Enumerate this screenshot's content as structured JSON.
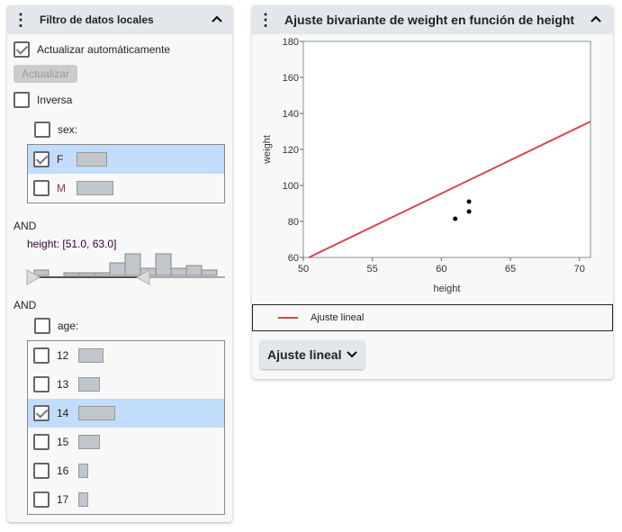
{
  "filter": {
    "title": "Filtro de datos locales",
    "auto_update_label": "Actualizar automáticamente",
    "auto_update": true,
    "update_button": "Actualizar",
    "inverse_label": "Inversa",
    "inverse": false,
    "sex": {
      "label": "sex:",
      "items": [
        {
          "label": "F",
          "checked": true
        },
        {
          "label": "M",
          "checked": false
        }
      ]
    },
    "and1": "AND",
    "height_label": "height: [51.0, 63.0]",
    "and2": "AND",
    "age": {
      "label": "age:",
      "items": [
        {
          "label": "12",
          "checked": false
        },
        {
          "label": "13",
          "checked": false
        },
        {
          "label": "14",
          "checked": true
        },
        {
          "label": "15",
          "checked": false
        },
        {
          "label": "16",
          "checked": false
        },
        {
          "label": "17",
          "checked": false
        }
      ]
    }
  },
  "report": {
    "title": "Ajuste bivariante de weight en función de height",
    "legend_label": "Ajuste lineal",
    "fit_button": "Ajuste lineal"
  },
  "chart_data": {
    "type": "scatter",
    "xlabel": "height",
    "ylabel": "weight",
    "xlim": [
      50,
      70.8
    ],
    "ylim": [
      60,
      180
    ],
    "xticks": [
      "50",
      "55",
      "60",
      "65",
      "70"
    ],
    "yticks": [
      "60",
      "80",
      "100",
      "120",
      "140",
      "160",
      "180"
    ],
    "points": [
      {
        "x": 61,
        "y": 81.5
      },
      {
        "x": 62,
        "y": 91
      },
      {
        "x": 62,
        "y": 85.5
      }
    ],
    "fit_line": {
      "name": "Ajuste lineal",
      "x": [
        50.4,
        70.8
      ],
      "y": [
        60,
        135.5
      ],
      "color": "#d9434f"
    }
  }
}
